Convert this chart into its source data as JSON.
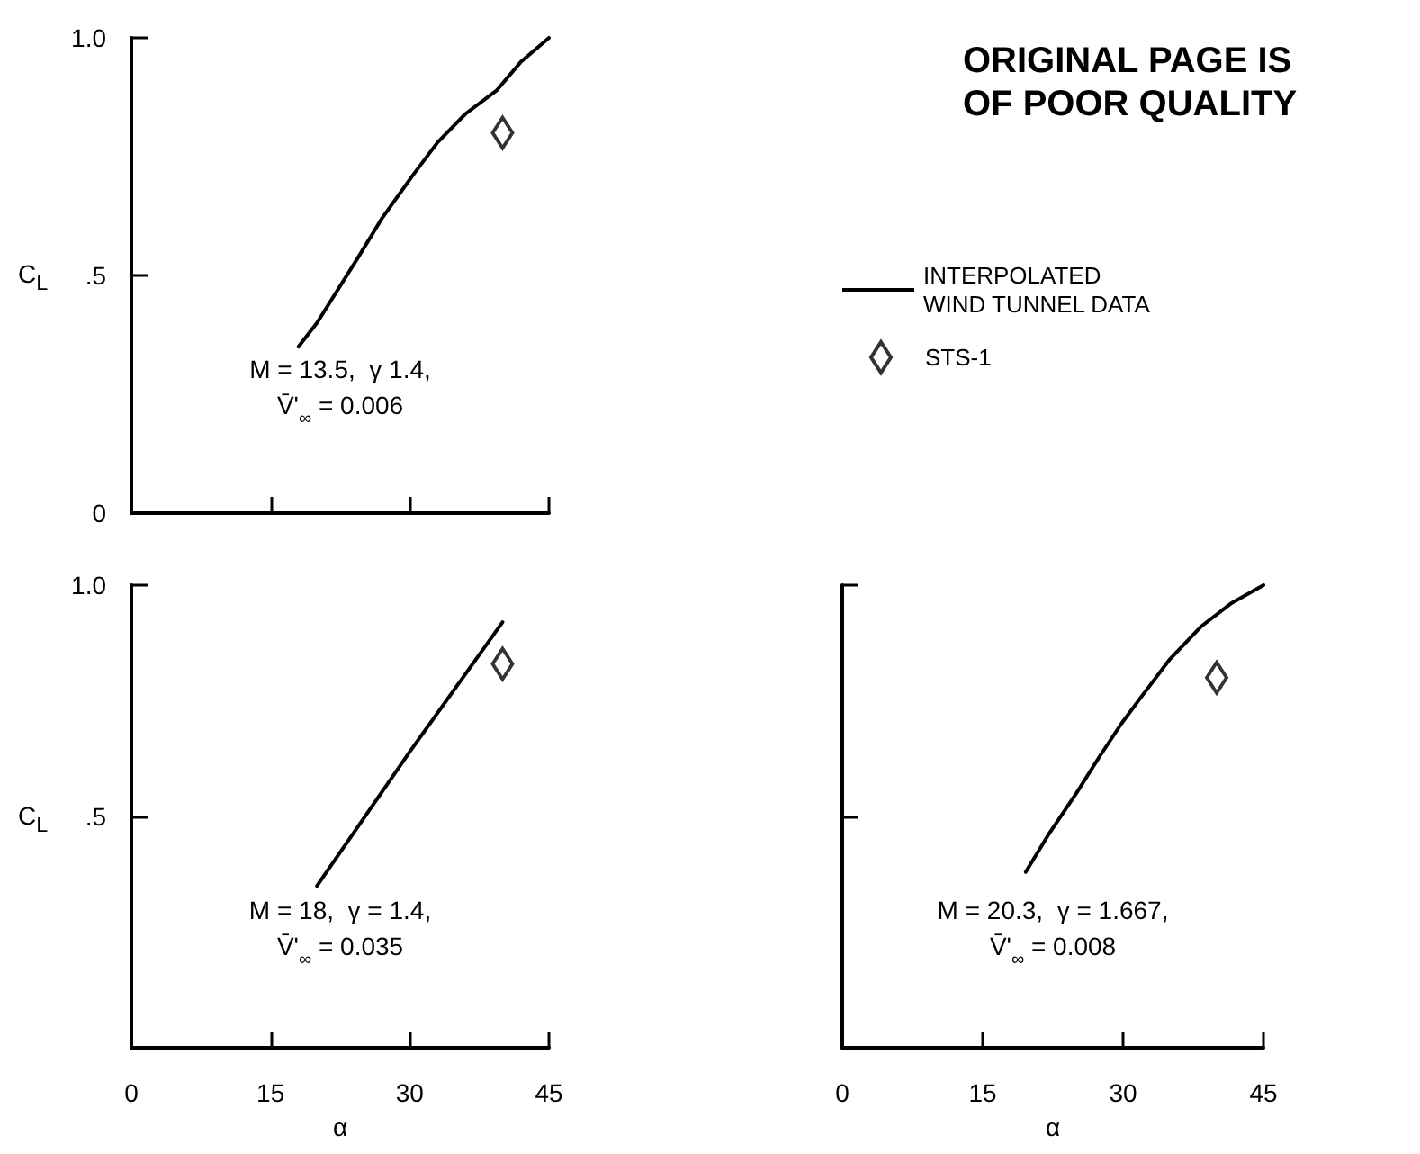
{
  "chart_data": [
    {
      "type": "line",
      "ylabel": "C$_{L}$",
      "xlim": [
        0,
        45
      ],
      "xticks": [
        0,
        15,
        30,
        45
      ],
      "ylim": [
        0,
        1
      ],
      "yticks": [
        0,
        {
          "value": 0.5,
          "label": ".5"
        },
        {
          "value": 1,
          "label": "1.0"
        }
      ],
      "tick_labels": "y",
      "grid": false,
      "legend": "right",
      "annotations": [
        "M = 13.5,  γ 1.4,\nV̄'$_{∞}$ = 0.006",
        "ORIGINAL PAGE IS\nOF POOR QUALITY"
      ],
      "series": [
        {
          "name": "INTERPOLATED\nWIND TUNNEL DATA",
          "color": "#000000",
          "marker": "none",
          "x": [
            18,
            20,
            24.5,
            27,
            30.3,
            33,
            36,
            39.4,
            42,
            45
          ],
          "values": [
            0.35,
            0.4,
            0.54,
            0.62,
            0.71,
            0.78,
            0.84,
            0.89,
            0.95,
            1.0
          ]
        },
        {
          "type": "scatter",
          "name": "STS-1",
          "color": "#000000",
          "marker": "diamond",
          "x": [
            40
          ],
          "values": [
            0.8
          ]
        }
      ]
    },
    {
      "type": "line",
      "xlabel": "α",
      "ylabel": "C$_{L}$",
      "xlim": [
        0,
        45
      ],
      "xticks": [
        0,
        15,
        30,
        45
      ],
      "ylim": [
        0,
        1
      ],
      "yticks": [
        {
          "value": 0,
          "label": null
        },
        {
          "value": 0.5,
          "label": ".5"
        },
        {
          "value": 1,
          "label": "1.0"
        }
      ],
      "grid": false,
      "annotations": [
        "M = 18,  γ = 1.4,\nV̄'$_{∞}$ = 0.035"
      ],
      "series": [
        {
          "color": "#000000",
          "marker": "none",
          "x": [
            20,
            30,
            40
          ],
          "values": [
            0.35,
            0.64,
            0.92
          ]
        },
        {
          "type": "scatter",
          "color": "#000000",
          "marker": "diamond",
          "x": [
            40
          ],
          "values": [
            0.83
          ]
        }
      ]
    },
    {
      "type": "line",
      "xlabel": "α",
      "xlim": [
        0,
        45
      ],
      "xticks": [
        0,
        15,
        30,
        45
      ],
      "ylim": [
        0,
        1
      ],
      "yticks": [
        0.5,
        1
      ],
      "tick_labels": "x",
      "grid": false,
      "annotations": [
        "M = 20.3,  γ = 1.667,\nV̄'$_{∞}$ = 0.008"
      ],
      "series": [
        {
          "color": "#000000",
          "marker": "none",
          "x": [
            19.6,
            22,
            25,
            27.5,
            29.8,
            32,
            35,
            38.3,
            41.5,
            45
          ],
          "values": [
            0.38,
            0.46,
            0.55,
            0.63,
            0.7,
            0.76,
            0.84,
            0.91,
            0.96,
            1.0
          ]
        },
        {
          "type": "scatter",
          "color": "#000000",
          "marker": "diamond",
          "x": [
            40
          ],
          "values": [
            0.8
          ]
        }
      ]
    }
  ]
}
